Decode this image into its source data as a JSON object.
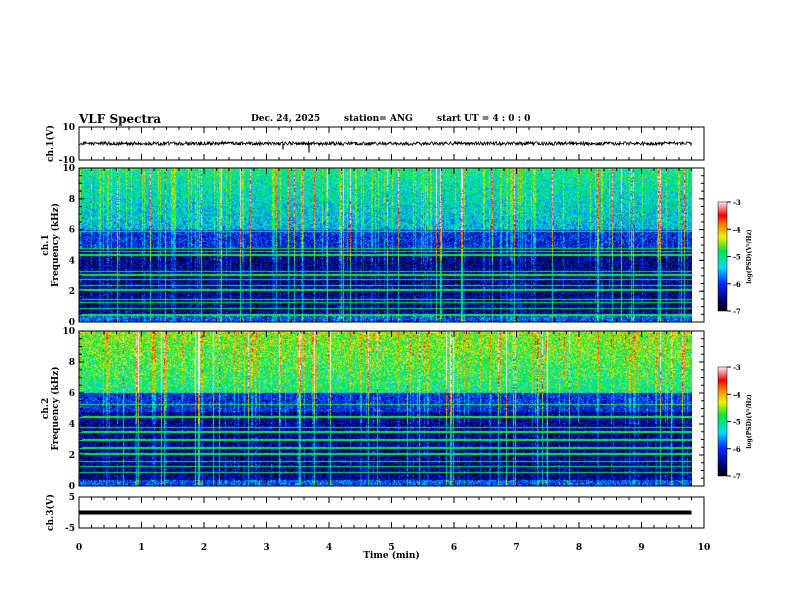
{
  "header": {
    "title": "VLF Spectra",
    "date": "Dec. 24, 2025",
    "station": "station= ANG",
    "start": "start  UT =   4 : 0  : 0"
  },
  "chart_data": [
    {
      "type": "line",
      "name": "ch1-waveform",
      "ylabel": "ch.1(V)",
      "ylim": [
        -10,
        10
      ],
      "yticks": [
        10,
        -10
      ],
      "baseline": 0,
      "x_range_min": [
        0,
        9.8
      ]
    },
    {
      "type": "heatmap",
      "name": "ch1-spectrogram",
      "ylabel": "ch.1\nFrequency (kHz)",
      "ylim": [
        0,
        10
      ],
      "yticks": [
        0,
        2,
        4,
        6,
        8,
        10
      ],
      "colorbar": {
        "label": "log(PSD)(V²/Hz)",
        "range": [
          -7,
          -3
        ],
        "ticks": [
          -3,
          -4,
          -5,
          -6,
          -7
        ]
      },
      "persistent_lines_khz": [
        0.5,
        0.9,
        1.3,
        1.5,
        2.1,
        2.4,
        2.8,
        3.1,
        3.3,
        4.4,
        4.6,
        4.8,
        5.9
      ]
    },
    {
      "type": "heatmap",
      "name": "ch2-spectrogram",
      "ylabel": "ch.2\nFrequency (kHz)",
      "ylim": [
        0,
        10
      ],
      "yticks": [
        0,
        2,
        4,
        6,
        8,
        10
      ],
      "colorbar": {
        "label": "log(PSD)(V²/Hz)",
        "range": [
          -7,
          -3
        ],
        "ticks": [
          -3,
          -4,
          -5,
          -6,
          -7
        ]
      },
      "persistent_lines_khz": [
        0.9,
        1.3,
        1.6,
        2.1,
        2.5,
        3.0,
        3.5,
        3.8,
        4.5,
        5.3
      ]
    },
    {
      "type": "line",
      "name": "ch3-waveform",
      "ylabel": "ch.3(V)",
      "ylim": [
        -5,
        5
      ],
      "yticks": [
        5,
        -5
      ],
      "baseline": 0,
      "x_range_min": [
        0,
        9.8
      ]
    }
  ],
  "xaxis": {
    "label": "Time  (min)",
    "ticks": [
      0,
      1,
      2,
      3,
      4,
      5,
      6,
      7,
      8,
      9,
      10
    ],
    "range": [
      0,
      10
    ]
  }
}
